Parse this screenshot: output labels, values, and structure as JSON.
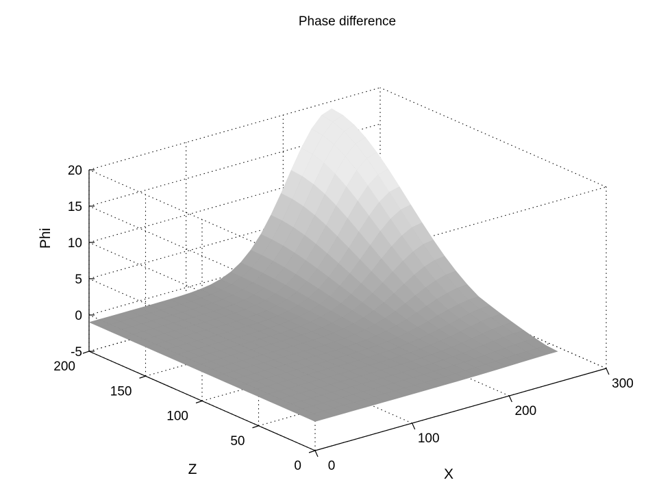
{
  "chart_data": {
    "type": "surface",
    "title": "Phase difference",
    "xlabel": "X",
    "ylabel": "Z",
    "zlabel": "Phi",
    "xlim": [
      0,
      300
    ],
    "ylim": [
      0,
      200
    ],
    "zlim": [
      -5,
      20
    ],
    "x_ticks": [
      "0",
      "100",
      "200",
      "300"
    ],
    "y_ticks": [
      "0",
      "50",
      "100",
      "150",
      "200"
    ],
    "z_ticks": [
      "-5",
      "0",
      "5",
      "10",
      "15",
      "20"
    ],
    "grid": true,
    "surface": {
      "x_extent": [
        0,
        250
      ],
      "y_extent": [
        0,
        200
      ],
      "baseline_phi": -1,
      "peak": {
        "x": 250,
        "y": 200,
        "phi": 19
      }
    },
    "colormap": "gray"
  }
}
